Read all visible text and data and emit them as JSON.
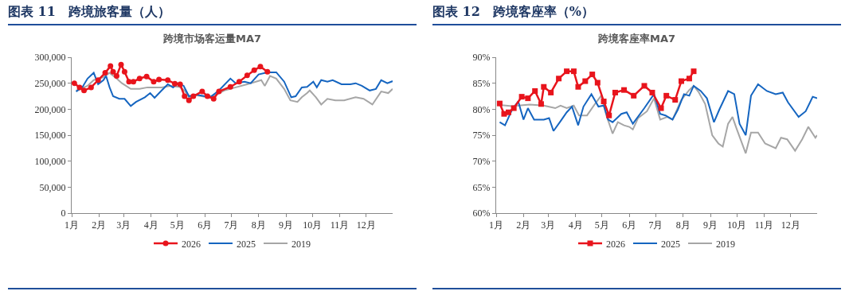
{
  "chart_data": [
    {
      "type": "line",
      "title": "图表 11　跨境旅客量（人）",
      "subtitle": "跨境市场客运量MA7",
      "xlim": [
        "--01-01",
        "--12-31"
      ],
      "xticks": [
        {
          "value": "--01-01",
          "label": "1月"
        },
        {
          "value": "--02-01",
          "label": "2月"
        },
        {
          "value": "--03-01",
          "label": "3月"
        },
        {
          "value": "--04-01",
          "label": "4月"
        },
        {
          "value": "--05-01",
          "label": "5月"
        },
        {
          "value": "--06-01",
          "label": "6月"
        },
        {
          "value": "--07-01",
          "label": "7月"
        },
        {
          "value": "--08-01",
          "label": "8月"
        },
        {
          "value": "--09-01",
          "label": "9月"
        },
        {
          "value": "--10-01",
          "label": "10月"
        },
        {
          "value": "--11-01",
          "label": "11月"
        },
        {
          "value": "--12-01",
          "label": "12月"
        }
      ],
      "ylim": [
        0,
        300000
      ],
      "yticks": [
        0,
        {
          "value": 50000,
          "label": "50,000"
        },
        {
          "value": 100000,
          "label": "100,000"
        },
        {
          "value": 150000,
          "label": "150,000"
        },
        {
          "value": 200000,
          "label": "200,000"
        },
        {
          "value": 250000,
          "label": "250,000"
        },
        {
          "value": 300000,
          "label": "300,000"
        }
      ],
      "grid": false,
      "legend": "bottom",
      "marker": "none",
      "line_style": "solid",
      "series": [
        {
          "name": "2026",
          "color": "#e8141c",
          "marker": "circle",
          "x": [
            "--01-04",
            "--01-10",
            "--01-15",
            "--01-23",
            "--01-31",
            "--02-08",
            "--02-14",
            "--02-17",
            "--02-21",
            "--02-26",
            "--03-02",
            "--03-07",
            "--03-12",
            "--03-19",
            "--03-27",
            "--04-04",
            "--04-10",
            "--04-20",
            "--04-28",
            "--05-04",
            "--05-09",
            "--05-14",
            "--05-19",
            "--05-29",
            "--06-04",
            "--06-11",
            "--06-17",
            "--06-30",
            "--07-10",
            "--07-19",
            "--07-27",
            "--08-03",
            "--08-11"
          ],
          "values": [
            250000,
            242000,
            236000,
            242000,
            256000,
            270000,
            283000,
            272000,
            264000,
            286000,
            272000,
            253000,
            253000,
            259000,
            263000,
            253000,
            257000,
            256000,
            249000,
            248000,
            225000,
            217000,
            225000,
            234000,
            225000,
            220000,
            234000,
            243000,
            253000,
            265000,
            275000,
            282000,
            272000
          ]
        },
        {
          "name": "2025",
          "color": "#1565c0",
          "x": [
            "--01-06",
            "--01-13",
            "--01-19",
            "--01-26",
            "--01-31",
            "--02-06",
            "--02-09",
            "--02-13",
            "--02-17",
            "--02-24",
            "--03-02",
            "--03-09",
            "--03-15",
            "--03-25",
            "--03-31",
            "--04-05",
            "--04-13",
            "--04-20",
            "--04-26",
            "--05-01",
            "--05-08",
            "--05-14",
            "--05-22",
            "--06-01",
            "--06-07",
            "--06-17",
            "--06-30",
            "--07-06",
            "--07-16",
            "--07-23",
            "--08-01",
            "--08-11",
            "--08-21",
            "--08-30",
            "--09-07",
            "--09-12",
            "--09-19",
            "--09-25",
            "--10-02",
            "--10-06",
            "--10-11",
            "--10-18",
            "--10-24",
            "--11-03",
            "--11-13",
            "--11-19",
            "--11-26",
            "--12-05",
            "--12-12",
            "--12-18",
            "--12-25",
            "--12-31"
          ],
          "values": [
            234000,
            242000,
            259000,
            270000,
            248000,
            256000,
            264000,
            242000,
            225000,
            220000,
            220000,
            206000,
            214000,
            223000,
            231000,
            222000,
            236000,
            248000,
            242000,
            250000,
            245000,
            225000,
            228000,
            225000,
            223000,
            236000,
            259000,
            250000,
            253000,
            250000,
            267000,
            271000,
            271000,
            253000,
            223000,
            225000,
            242000,
            243000,
            253000,
            242000,
            256000,
            253000,
            256000,
            248000,
            248000,
            250000,
            245000,
            236000,
            239000,
            256000,
            250000,
            254000
          ]
        },
        {
          "name": "2019",
          "color": "#a6a6a6",
          "x": [
            "--01-06",
            "--01-19",
            "--01-26",
            "--02-05",
            "--02-13",
            "--02-21",
            "--02-27",
            "--03-09",
            "--03-19",
            "--03-28",
            "--04-13",
            "--04-23",
            "--05-03",
            "--05-09",
            "--05-14",
            "--05-22",
            "--06-04",
            "--06-14",
            "--06-23",
            "--07-06",
            "--07-19",
            "--07-29",
            "--08-04",
            "--08-08",
            "--08-14",
            "--08-21",
            "--08-30",
            "--09-06",
            "--09-14",
            "--09-19",
            "--09-25",
            "--09-28",
            "--10-05",
            "--10-11",
            "--10-18",
            "--10-27",
            "--11-06",
            "--11-19",
            "--11-28",
            "--12-08",
            "--12-18",
            "--12-26",
            "--12-31"
          ],
          "values": [
            236000,
            245000,
            256000,
            261000,
            270000,
            259000,
            250000,
            239000,
            239000,
            242000,
            242000,
            245000,
            243000,
            236000,
            223000,
            227000,
            223000,
            228000,
            236000,
            242000,
            248000,
            253000,
            256000,
            245000,
            264000,
            259000,
            239000,
            217000,
            214000,
            223000,
            231000,
            236000,
            223000,
            209000,
            220000,
            217000,
            217000,
            223000,
            220000,
            209000,
            234000,
            231000,
            239000
          ]
        }
      ]
    },
    {
      "type": "line",
      "title": "图表 12　跨境客座率（%）",
      "subtitle": "跨境客座率MA7",
      "xlim": [
        "--01-01",
        "--12-31"
      ],
      "xticks": [
        {
          "value": "--01-01",
          "label": "1月"
        },
        {
          "value": "--02-01",
          "label": "2月"
        },
        {
          "value": "--03-01",
          "label": "3月"
        },
        {
          "value": "--04-01",
          "label": "4月"
        },
        {
          "value": "--05-01",
          "label": "5月"
        },
        {
          "value": "--06-01",
          "label": "6月"
        },
        {
          "value": "--07-01",
          "label": "7月"
        },
        {
          "value": "--08-01",
          "label": "8月"
        },
        {
          "value": "--09-01",
          "label": "9月"
        },
        {
          "value": "--10-01",
          "label": "10月"
        },
        {
          "value": "--11-01",
          "label": "11月"
        },
        {
          "value": "--12-01",
          "label": "12月"
        }
      ],
      "ylim": [
        60,
        90
      ],
      "yticks": [
        {
          "value": 60,
          "label": "60%"
        },
        {
          "value": 65,
          "label": "65%"
        },
        {
          "value": 70,
          "label": "70%"
        },
        {
          "value": 75,
          "label": "75%"
        },
        {
          "value": 80,
          "label": "80%"
        },
        {
          "value": 85,
          "label": "85%"
        },
        {
          "value": 90,
          "label": "90%"
        }
      ],
      "grid": false,
      "legend": "bottom",
      "marker": "none",
      "line_style": "solid",
      "series": [
        {
          "name": "2026",
          "color": "#e8141c",
          "marker": "square",
          "x": [
            "--01-05",
            "--01-10",
            "--01-15",
            "--01-21",
            "--01-30",
            "--02-06",
            "--02-14",
            "--02-21",
            "--02-24",
            "--03-04",
            "--03-13",
            "--03-22",
            "--03-30",
            "--04-04",
            "--04-12",
            "--04-20",
            "--04-26",
            "--05-03",
            "--05-09",
            "--05-16",
            "--05-26",
            "--06-06",
            "--06-18",
            "--06-27",
            "--07-07",
            "--07-13",
            "--07-23",
            "--07-30",
            "--08-08",
            "--08-13"
          ],
          "values": [
            81.1,
            79.1,
            79.4,
            80.2,
            82.4,
            82.1,
            83.5,
            81.0,
            84.3,
            83.2,
            85.9,
            87.3,
            87.3,
            84.3,
            85.4,
            86.7,
            85.1,
            81.5,
            78.8,
            83.2,
            83.7,
            82.6,
            84.5,
            83.2,
            80.2,
            82.6,
            81.8,
            85.4,
            85.9,
            87.3
          ]
        },
        {
          "name": "2025",
          "color": "#1565c0",
          "x": [
            "--01-05",
            "--01-11",
            "--01-19",
            "--01-26",
            "--02-01",
            "--02-06",
            "--02-13",
            "--02-24",
            "--03-02",
            "--03-07",
            "--03-15",
            "--03-22",
            "--03-28",
            "--04-04",
            "--04-10",
            "--04-19",
            "--04-27",
            "--05-03",
            "--05-08",
            "--05-13",
            "--05-23",
            "--05-29",
            "--06-05",
            "--06-18",
            "--06-29",
            "--07-06",
            "--07-12",
            "--07-20",
            "--07-26",
            "--08-02",
            "--08-08",
            "--08-13",
            "--08-21",
            "--08-28",
            "--09-05",
            "--09-11",
            "--09-21",
            "--09-28",
            "--10-04",
            "--10-11",
            "--10-17",
            "--10-25",
            "--11-04",
            "--11-14",
            "--11-22",
            "--11-28",
            "--12-10",
            "--12-18",
            "--12-26",
            "--12-31"
          ],
          "values": [
            77.5,
            76.9,
            79.9,
            81.5,
            78.0,
            80.2,
            78.0,
            78.0,
            78.3,
            75.8,
            77.7,
            79.4,
            80.5,
            76.9,
            80.5,
            82.9,
            80.5,
            80.7,
            78.0,
            77.5,
            79.1,
            79.4,
            77.2,
            80.2,
            82.9,
            79.1,
            78.8,
            78.0,
            79.9,
            82.9,
            82.6,
            84.5,
            83.5,
            82.1,
            77.5,
            79.9,
            83.5,
            82.9,
            77.2,
            75.0,
            82.6,
            84.8,
            83.5,
            82.9,
            83.2,
            81.3,
            78.5,
            79.6,
            82.4,
            82.1
          ]
        },
        {
          "name": "2019",
          "color": "#a6a6a6",
          "x": [
            "--01-05",
            "--01-19",
            "--02-08",
            "--02-24",
            "--03-09",
            "--03-15",
            "--03-22",
            "--03-30",
            "--04-05",
            "--04-14",
            "--04-23",
            "--04-30",
            "--05-06",
            "--05-13",
            "--05-19",
            "--05-26",
            "--06-01",
            "--06-05",
            "--06-11",
            "--06-21",
            "--06-29",
            "--07-06",
            "--07-14",
            "--07-20",
            "--07-30",
            "--08-08",
            "--08-13",
            "--08-19",
            "--08-26",
            "--09-03",
            "--09-10",
            "--09-15",
            "--09-21",
            "--09-26",
            "--10-01",
            "--10-11",
            "--10-17",
            "--10-25",
            "--11-02",
            "--11-14",
            "--11-20",
            "--11-27",
            "--12-06",
            "--12-14",
            "--12-21",
            "--12-29",
            "--12-31"
          ],
          "values": [
            80.8,
            80.6,
            80.9,
            80.7,
            80.2,
            80.7,
            80.2,
            80.7,
            78.8,
            78.8,
            81.0,
            82.6,
            78.8,
            75.3,
            77.5,
            76.9,
            76.6,
            76.1,
            78.3,
            79.6,
            82.1,
            78.0,
            78.5,
            78.0,
            81.8,
            83.7,
            84.5,
            83.2,
            81.0,
            75.0,
            73.4,
            72.8,
            77.2,
            78.5,
            76.1,
            71.5,
            75.5,
            75.5,
            73.4,
            72.5,
            74.5,
            74.2,
            72.0,
            74.2,
            76.6,
            74.5,
            75.0
          ]
        }
      ]
    }
  ]
}
